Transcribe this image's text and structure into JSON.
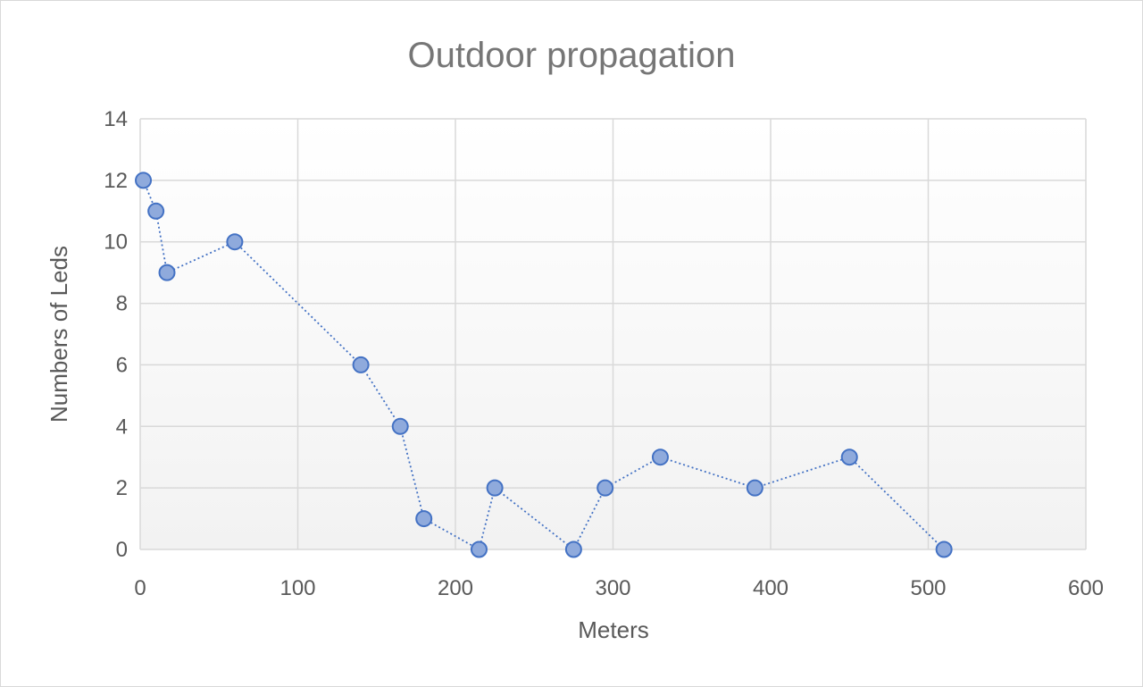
{
  "chart_data": {
    "type": "scatter",
    "title": "Outdoor propagation",
    "xlabel": "Meters",
    "ylabel": "Numbers of Leds",
    "xlim": [
      0,
      600
    ],
    "ylim": [
      0,
      14
    ],
    "xticks": [
      0,
      100,
      200,
      300,
      400,
      500,
      600
    ],
    "yticks": [
      0,
      2,
      4,
      6,
      8,
      10,
      12,
      14
    ],
    "grid": true,
    "legend": "none",
    "series": [
      {
        "x": [
          2,
          10,
          17,
          60,
          140,
          165,
          180,
          215,
          225,
          275,
          295,
          330,
          390,
          450,
          510
        ],
        "y": [
          12,
          11,
          9,
          10,
          6,
          4,
          1,
          0,
          2,
          0,
          2,
          3,
          2,
          3,
          0
        ],
        "marker_fill": "#8faadc",
        "marker_stroke": "#4472c4",
        "line_color": "#4472c4",
        "line_style": "dotted"
      }
    ]
  }
}
